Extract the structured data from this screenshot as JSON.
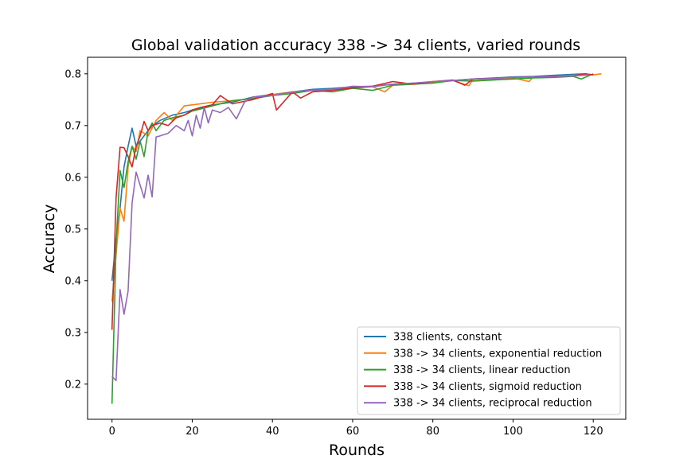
{
  "chart_data": {
    "type": "line",
    "title": "Global validation accuracy 338 -> 34 clients, varied rounds",
    "xlabel": "Rounds",
    "ylabel": "Accuracy",
    "xlim": [
      -6.1,
      128.1
    ],
    "ylim": [
      0.132,
      0.832
    ],
    "xticks": [
      0,
      20,
      40,
      60,
      80,
      100,
      120
    ],
    "xtick_labels": [
      "0",
      "20",
      "40",
      "60",
      "80",
      "100",
      "120"
    ],
    "yticks": [
      0.2,
      0.3,
      0.4,
      0.5,
      0.6,
      0.7,
      0.8
    ],
    "ytick_labels": [
      "0.2",
      "0.3",
      "0.4",
      "0.5",
      "0.6",
      "0.7",
      "0.8"
    ],
    "grid": false,
    "legend_position": "lower-right",
    "series": [
      {
        "name": "338 clients, constant",
        "color": "#1f77b4",
        "x": [
          0,
          1,
          2,
          3,
          4,
          5,
          6,
          8,
          10,
          12,
          15,
          18,
          20,
          25,
          30,
          35,
          40,
          45,
          50,
          55,
          60,
          65,
          70,
          75,
          80,
          85,
          90,
          95,
          100,
          105,
          110,
          115,
          118
        ],
        "y": [
          0.4,
          0.48,
          0.54,
          0.62,
          0.66,
          0.695,
          0.66,
          0.68,
          0.7,
          0.71,
          0.72,
          0.725,
          0.73,
          0.74,
          0.745,
          0.755,
          0.76,
          0.765,
          0.77,
          0.772,
          0.775,
          0.776,
          0.78,
          0.782,
          0.784,
          0.787,
          0.79,
          0.792,
          0.794,
          0.795,
          0.797,
          0.799,
          0.8
        ]
      },
      {
        "name": "338 -> 34 clients, exponential reduction",
        "color": "#ff7f0e",
        "x": [
          0,
          1,
          2,
          3,
          4,
          5,
          6,
          7,
          9,
          11,
          13,
          15,
          18,
          20,
          25,
          30,
          35,
          40,
          45,
          50,
          55,
          60,
          65,
          68,
          70,
          75,
          80,
          85,
          89,
          90,
          95,
          100,
          104,
          105,
          110,
          115,
          120,
          122
        ],
        "y": [
          0.36,
          0.45,
          0.54,
          0.515,
          0.62,
          0.66,
          0.65,
          0.69,
          0.68,
          0.71,
          0.725,
          0.71,
          0.738,
          0.74,
          0.745,
          0.748,
          0.752,
          0.76,
          0.765,
          0.768,
          0.77,
          0.772,
          0.775,
          0.765,
          0.778,
          0.78,
          0.783,
          0.787,
          0.777,
          0.789,
          0.79,
          0.792,
          0.785,
          0.794,
          0.795,
          0.797,
          0.798,
          0.8
        ]
      },
      {
        "name": "338 -> 34 clients, linear reduction",
        "color": "#2ca02c",
        "x": [
          0,
          1,
          2,
          3,
          4,
          5,
          6,
          7,
          8,
          9,
          10,
          11,
          13,
          15,
          18,
          20,
          25,
          30,
          35,
          40,
          45,
          50,
          55,
          60,
          65,
          70,
          75,
          80,
          85,
          90,
          95,
          100,
          105,
          110,
          115,
          117,
          120
        ],
        "y": [
          0.162,
          0.47,
          0.613,
          0.58,
          0.63,
          0.66,
          0.635,
          0.67,
          0.64,
          0.69,
          0.705,
          0.69,
          0.71,
          0.715,
          0.72,
          0.728,
          0.738,
          0.748,
          0.752,
          0.758,
          0.762,
          0.768,
          0.765,
          0.772,
          0.768,
          0.778,
          0.78,
          0.782,
          0.787,
          0.786,
          0.788,
          0.79,
          0.792,
          0.793,
          0.795,
          0.79,
          0.8
        ]
      },
      {
        "name": "338 -> 34 clients, sigmoid reduction",
        "color": "#d62728",
        "x": [
          0,
          1,
          2,
          3,
          4,
          5,
          6,
          7,
          8,
          9,
          10,
          12,
          14,
          16,
          18,
          20,
          22,
          25,
          27,
          30,
          35,
          40,
          41,
          45,
          47,
          50,
          55,
          60,
          65,
          70,
          75,
          80,
          85,
          88,
          90,
          95,
          100,
          105,
          110,
          115,
          118,
          120
        ],
        "y": [
          0.305,
          0.56,
          0.658,
          0.657,
          0.64,
          0.62,
          0.66,
          0.68,
          0.708,
          0.69,
          0.7,
          0.705,
          0.7,
          0.715,
          0.72,
          0.73,
          0.735,
          0.74,
          0.758,
          0.742,
          0.75,
          0.762,
          0.73,
          0.765,
          0.753,
          0.765,
          0.768,
          0.773,
          0.776,
          0.785,
          0.78,
          0.785,
          0.788,
          0.778,
          0.79,
          0.791,
          0.793,
          0.794,
          0.795,
          0.796,
          0.8,
          0.798
        ]
      },
      {
        "name": "338 -> 34 clients, reciprocal reduction",
        "color": "#9467bd",
        "x": [
          0,
          1,
          2,
          3,
          4,
          5,
          6,
          7,
          8,
          9,
          10,
          11,
          12,
          14,
          16,
          18,
          19,
          20,
          21,
          22,
          23,
          24,
          25,
          27,
          29,
          31,
          33,
          35,
          40,
          45,
          50,
          55,
          60,
          65,
          70,
          75,
          80,
          85,
          90,
          95,
          100,
          105,
          110,
          115,
          119
        ],
        "y": [
          0.215,
          0.207,
          0.383,
          0.335,
          0.38,
          0.55,
          0.61,
          0.585,
          0.56,
          0.604,
          0.562,
          0.678,
          0.68,
          0.685,
          0.7,
          0.69,
          0.71,
          0.68,
          0.72,
          0.695,
          0.735,
          0.705,
          0.73,
          0.725,
          0.735,
          0.713,
          0.745,
          0.755,
          0.758,
          0.765,
          0.768,
          0.77,
          0.776,
          0.775,
          0.78,
          0.782,
          0.785,
          0.787,
          0.79,
          0.791,
          0.793,
          0.794,
          0.795,
          0.796,
          0.798
        ]
      }
    ]
  }
}
